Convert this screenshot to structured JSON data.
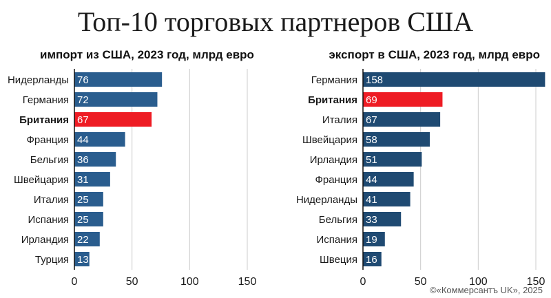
{
  "title": "Топ-10 торговых партнеров США",
  "credit": "©«Коммерсантъ UK», 2025",
  "colors": {
    "bar": "#2a5d8e",
    "bar_dark": "#1f4a72",
    "highlight": "#ee1c24",
    "grid": "#cccccc",
    "axis": "#111111"
  },
  "chart_data": [
    {
      "type": "bar",
      "orientation": "horizontal",
      "title": "импорт из США, 2023 год, млрд евро",
      "categories": [
        "Нидерланды",
        "Германия",
        "Британия",
        "Франция",
        "Бельгия",
        "Швейцария",
        "Италия",
        "Испания",
        "Ирландия",
        "Турция"
      ],
      "values": [
        76,
        72,
        67,
        44,
        36,
        31,
        25,
        25,
        22,
        13
      ],
      "highlight": "Британия",
      "xlim": [
        0,
        150
      ],
      "xticks": [
        0,
        50,
        100,
        150
      ],
      "grid": true
    },
    {
      "type": "bar",
      "orientation": "horizontal",
      "title": "экспорт в США, 2023 год, млрд евро",
      "categories": [
        "Германия",
        "Британия",
        "Италия",
        "Швейцария",
        "Ирландия",
        "Франция",
        "Нидерланды",
        "Бельгия",
        "Испания",
        "Швеция"
      ],
      "values": [
        158,
        69,
        67,
        58,
        51,
        44,
        41,
        33,
        19,
        16
      ],
      "highlight": "Британия",
      "xlim": [
        0,
        150
      ],
      "xticks": [
        0,
        50,
        100,
        150
      ],
      "grid": true
    }
  ]
}
